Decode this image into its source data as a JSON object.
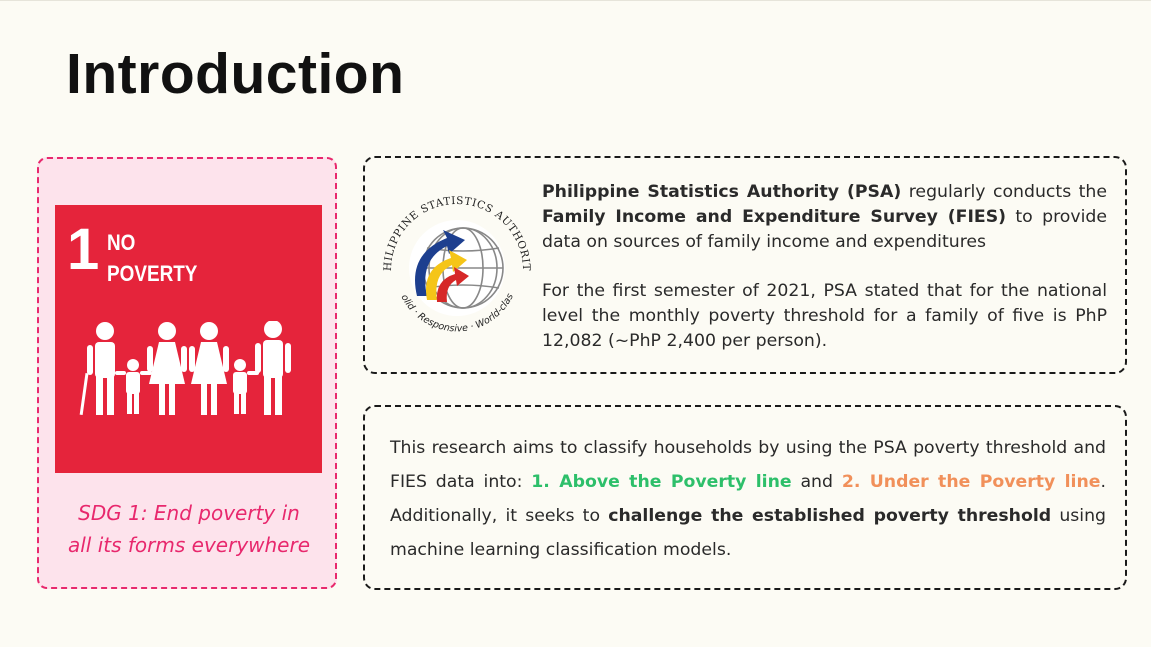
{
  "slide": {
    "title": "Introduction"
  },
  "sdg": {
    "number": "1",
    "name_line1": "NO",
    "name_line2": "POVERTY",
    "caption_line1": "SDG 1: End poverty in",
    "caption_line2": "all its forms everywhere",
    "tile_color": "#e5243b",
    "accent_color": "#e8286d"
  },
  "psa": {
    "logo_arc_text": "PHILIPPINE STATISTICS AUTHORITY",
    "logo_bottom_text": "Solid · Responsive · World-class",
    "p1_bold1": "Philippine Statistics Authority (PSA)",
    "p1_text1": " regularly conducts the ",
    "p1_bold2": "Family Income and Expenditure Survey (FIES)",
    "p1_text2": " to provide data on sources of family income and expenditures",
    "p2": "For the first semester of 2021, PSA stated that for the national level the monthly poverty threshold for a family of five is PhP 12,082 (~PhP 2,400 per person)."
  },
  "research": {
    "text1": "This research aims to classify households by using the PSA  poverty threshold and FIES data into: ",
    "label_above": "1. Above the Poverty line",
    "text2": " and ",
    "label_under": "2. Under the Poverty line",
    "text3": ". Additionally, it seeks to ",
    "bold": "challenge the established poverty threshold",
    "text4": " using machine learning classification models.",
    "green": "#2dbf6a",
    "orange": "#f1905a"
  }
}
